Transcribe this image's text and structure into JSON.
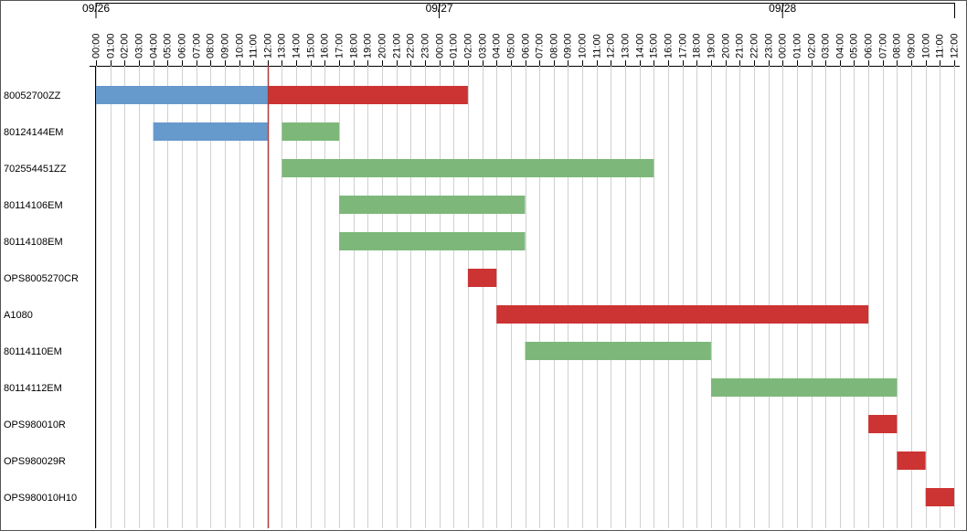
{
  "chart_data": {
    "type": "gantt",
    "xlim": [
      0,
      60
    ],
    "days": [
      {
        "value": 0,
        "label": "09/26"
      },
      {
        "value": 24,
        "label": "09/27"
      },
      {
        "value": 48,
        "label": "09/28"
      }
    ],
    "xticks": [
      {
        "value": 0,
        "label": "00:00"
      },
      {
        "value": 1,
        "label": "01:00"
      },
      {
        "value": 2,
        "label": "02:00"
      },
      {
        "value": 3,
        "label": "03:00"
      },
      {
        "value": 4,
        "label": "04:00"
      },
      {
        "value": 5,
        "label": "05:00"
      },
      {
        "value": 6,
        "label": "06:00"
      },
      {
        "value": 7,
        "label": "07:00"
      },
      {
        "value": 8,
        "label": "08:00"
      },
      {
        "value": 9,
        "label": "09:00"
      },
      {
        "value": 10,
        "label": "10:00"
      },
      {
        "value": 11,
        "label": "11:00"
      },
      {
        "value": 12,
        "label": "12:00"
      },
      {
        "value": 13,
        "label": "13:00"
      },
      {
        "value": 14,
        "label": "14:00"
      },
      {
        "value": 15,
        "label": "15:00"
      },
      {
        "value": 16,
        "label": "16:00"
      },
      {
        "value": 17,
        "label": "17:00"
      },
      {
        "value": 18,
        "label": "18:00"
      },
      {
        "value": 19,
        "label": "19:00"
      },
      {
        "value": 20,
        "label": "20:00"
      },
      {
        "value": 21,
        "label": "21:00"
      },
      {
        "value": 22,
        "label": "22:00"
      },
      {
        "value": 23,
        "label": "23:00"
      },
      {
        "value": 24,
        "label": "00:00"
      },
      {
        "value": 25,
        "label": "01:00"
      },
      {
        "value": 26,
        "label": "02:00"
      },
      {
        "value": 27,
        "label": "03:00"
      },
      {
        "value": 28,
        "label": "04:00"
      },
      {
        "value": 29,
        "label": "05:00"
      },
      {
        "value": 30,
        "label": "06:00"
      },
      {
        "value": 31,
        "label": "07:00"
      },
      {
        "value": 32,
        "label": "08:00"
      },
      {
        "value": 33,
        "label": "09:00"
      },
      {
        "value": 34,
        "label": "10:00"
      },
      {
        "value": 35,
        "label": "11:00"
      },
      {
        "value": 36,
        "label": "12:00"
      },
      {
        "value": 37,
        "label": "13:00"
      },
      {
        "value": 38,
        "label": "14:00"
      },
      {
        "value": 39,
        "label": "15:00"
      },
      {
        "value": 40,
        "label": "16:00"
      },
      {
        "value": 41,
        "label": "17:00"
      },
      {
        "value": 42,
        "label": "18:00"
      },
      {
        "value": 43,
        "label": "19:00"
      },
      {
        "value": 44,
        "label": "20:00"
      },
      {
        "value": 45,
        "label": "21:00"
      },
      {
        "value": 46,
        "label": "22:00"
      },
      {
        "value": 47,
        "label": "23:00"
      },
      {
        "value": 48,
        "label": "00:00"
      },
      {
        "value": 49,
        "label": "01:00"
      },
      {
        "value": 50,
        "label": "02:00"
      },
      {
        "value": 51,
        "label": "03:00"
      },
      {
        "value": 52,
        "label": "04:00"
      },
      {
        "value": 53,
        "label": "05:00"
      },
      {
        "value": 54,
        "label": "06:00"
      },
      {
        "value": 55,
        "label": "07:00"
      },
      {
        "value": 56,
        "label": "08:00"
      },
      {
        "value": 57,
        "label": "09:00"
      },
      {
        "value": 58,
        "label": "10:00"
      },
      {
        "value": 59,
        "label": "11:00"
      },
      {
        "value": 60,
        "label": "12:00"
      }
    ],
    "grid": true,
    "now": 12,
    "now_color": "#b03a3a",
    "tasks": [
      {
        "name": "80052700ZZ",
        "segments": [
          {
            "start": 0,
            "end": 12,
            "color": "#6699cc"
          },
          {
            "start": 12,
            "end": 26,
            "color": "#cc3333"
          }
        ]
      },
      {
        "name": "80124144EM",
        "segments": [
          {
            "start": 4,
            "end": 12,
            "color": "#6699cc"
          },
          {
            "start": 13,
            "end": 17,
            "color": "#7db87a"
          }
        ]
      },
      {
        "name": "702554451ZZ",
        "segments": [
          {
            "start": 13,
            "end": 39,
            "color": "#7db87a"
          }
        ]
      },
      {
        "name": "80114106EM",
        "segments": [
          {
            "start": 17,
            "end": 30,
            "color": "#7db87a"
          }
        ]
      },
      {
        "name": "80114108EM",
        "segments": [
          {
            "start": 17,
            "end": 30,
            "color": "#7db87a"
          }
        ]
      },
      {
        "name": "OPS8005270CR",
        "segments": [
          {
            "start": 26,
            "end": 28,
            "color": "#cc3333"
          }
        ]
      },
      {
        "name": "A1080",
        "segments": [
          {
            "start": 28,
            "end": 54,
            "color": "#cc3333"
          }
        ]
      },
      {
        "name": "80114110EM",
        "segments": [
          {
            "start": 30,
            "end": 43,
            "color": "#7db87a"
          }
        ]
      },
      {
        "name": "80114112EM",
        "segments": [
          {
            "start": 43,
            "end": 56,
            "color": "#7db87a"
          }
        ]
      },
      {
        "name": "OPS980010R",
        "segments": [
          {
            "start": 54,
            "end": 56,
            "color": "#cc3333"
          }
        ]
      },
      {
        "name": "OPS980029R",
        "segments": [
          {
            "start": 56,
            "end": 58,
            "color": "#cc3333"
          }
        ]
      },
      {
        "name": "OPS980010H10",
        "segments": [
          {
            "start": 58,
            "end": 60,
            "color": "#cc3333"
          }
        ]
      }
    ]
  }
}
